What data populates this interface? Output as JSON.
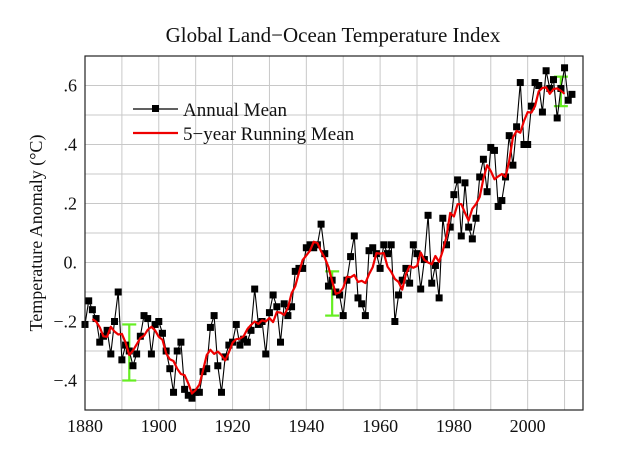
{
  "chart_data": {
    "type": "line",
    "title": "Global Land−Ocean Temperature Index",
    "xlabel": "",
    "ylabel": "Temperature Anomaly (°C)",
    "xlim": [
      1880,
      2015
    ],
    "ylim": [
      -0.5,
      0.7
    ],
    "grid": true,
    "x_ticks": [
      1880,
      1900,
      1920,
      1940,
      1960,
      1980,
      2000
    ],
    "x_tick_labels": [
      "1880",
      "1900",
      "1920",
      "1940",
      "1960",
      "1980",
      "2000"
    ],
    "y_ticks": [
      -0.4,
      -0.2,
      0.0,
      0.2,
      0.4,
      0.6
    ],
    "y_tick_labels": [
      "−.4",
      "−.2",
      "0.",
      ".2",
      ".4",
      ".6"
    ],
    "legend": {
      "position": "top-left",
      "entries": [
        {
          "label": "Annual Mean",
          "color": "#000000",
          "marker": "square"
        },
        {
          "label": "5−year Running Mean",
          "color": "#ee0000",
          "marker": "none"
        }
      ]
    },
    "x": [
      1880,
      1881,
      1882,
      1883,
      1884,
      1885,
      1886,
      1887,
      1888,
      1889,
      1890,
      1891,
      1892,
      1893,
      1894,
      1895,
      1896,
      1897,
      1898,
      1899,
      1900,
      1901,
      1902,
      1903,
      1904,
      1905,
      1906,
      1907,
      1908,
      1909,
      1910,
      1911,
      1912,
      1913,
      1914,
      1915,
      1916,
      1917,
      1918,
      1919,
      1920,
      1921,
      1922,
      1923,
      1924,
      1925,
      1926,
      1927,
      1928,
      1929,
      1930,
      1931,
      1932,
      1933,
      1934,
      1935,
      1936,
      1937,
      1938,
      1939,
      1940,
      1941,
      1942,
      1943,
      1944,
      1945,
      1946,
      1947,
      1948,
      1949,
      1950,
      1951,
      1952,
      1953,
      1954,
      1955,
      1956,
      1957,
      1958,
      1959,
      1960,
      1961,
      1962,
      1963,
      1964,
      1965,
      1966,
      1967,
      1968,
      1969,
      1970,
      1971,
      1972,
      1973,
      1974,
      1975,
      1976,
      1977,
      1978,
      1979,
      1980,
      1981,
      1982,
      1983,
      1984,
      1985,
      1986,
      1987,
      1988,
      1989,
      1990,
      1991,
      1992,
      1993,
      1994,
      1995,
      1996,
      1997,
      1998,
      1999,
      2000,
      2001,
      2002,
      2003,
      2004,
      2005,
      2006,
      2007,
      2008,
      2009,
      2010,
      2011,
      2012
    ],
    "series": [
      {
        "name": "Annual Mean",
        "color": "#000000",
        "values": [
          -0.21,
          -0.13,
          -0.16,
          -0.19,
          -0.27,
          -0.25,
          -0.23,
          -0.31,
          -0.2,
          -0.1,
          -0.33,
          -0.28,
          -0.3,
          -0.35,
          -0.31,
          -0.25,
          -0.18,
          -0.19,
          -0.31,
          -0.21,
          -0.2,
          -0.24,
          -0.3,
          -0.36,
          -0.44,
          -0.3,
          -0.27,
          -0.43,
          -0.45,
          -0.46,
          -0.44,
          -0.44,
          -0.37,
          -0.36,
          -0.22,
          -0.18,
          -0.35,
          -0.44,
          -0.32,
          -0.28,
          -0.27,
          -0.21,
          -0.28,
          -0.26,
          -0.27,
          -0.23,
          -0.09,
          -0.21,
          -0.2,
          -0.31,
          -0.17,
          -0.11,
          -0.15,
          -0.27,
          -0.14,
          -0.18,
          -0.15,
          -0.03,
          -0.02,
          -0.02,
          0.05,
          0.06,
          0.05,
          0.06,
          0.13,
          0.03,
          -0.08,
          -0.06,
          -0.1,
          -0.11,
          -0.18,
          -0.06,
          0.02,
          0.09,
          -0.12,
          -0.14,
          -0.18,
          0.04,
          0.05,
          0.03,
          -0.02,
          0.06,
          0.03,
          0.06,
          -0.2,
          -0.11,
          -0.06,
          -0.02,
          -0.07,
          0.06,
          0.03,
          -0.09,
          0.01,
          0.16,
          -0.07,
          -0.01,
          -0.12,
          0.15,
          0.06,
          0.12,
          0.23,
          0.28,
          0.09,
          0.27,
          0.12,
          0.08,
          0.15,
          0.29,
          0.35,
          0.24,
          0.39,
          0.38,
          0.19,
          0.21,
          0.29,
          0.43,
          0.33,
          0.46,
          0.61,
          0.4,
          0.4,
          0.53,
          0.61,
          0.6,
          0.51,
          0.65,
          0.59,
          0.62,
          0.49,
          0.59,
          0.66,
          0.55,
          0.57
        ]
      },
      {
        "name": "5−year Running Mean",
        "color": "#ee0000",
        "window": 5
      }
    ],
    "uncertainty_bars": [
      {
        "x": 1892,
        "low": -0.4,
        "high": -0.21,
        "color": "#66ee22"
      },
      {
        "x": 1947,
        "low": -0.18,
        "high": -0.03,
        "color": "#66ee22"
      },
      {
        "x": 2009,
        "low": 0.53,
        "high": 0.63,
        "color": "#66ee22"
      }
    ]
  }
}
